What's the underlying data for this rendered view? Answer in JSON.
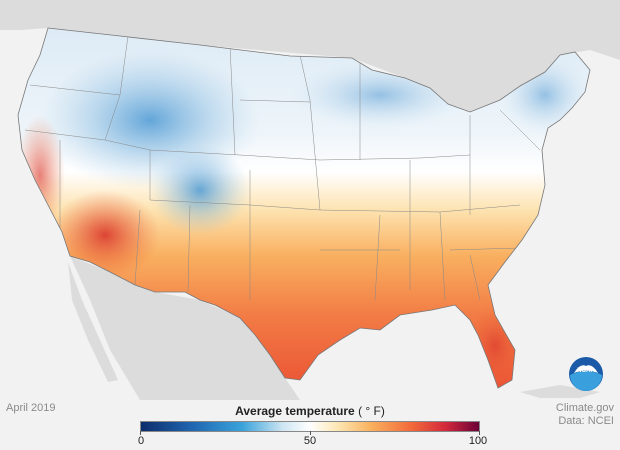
{
  "date_label": "April 2019",
  "credit": {
    "line1": "Climate.gov",
    "line2": "Data: NCEI"
  },
  "legend": {
    "title": "Average temperature",
    "unit": "( ° F)",
    "min_label": "0",
    "mid_label": "50",
    "max_label": "100"
  },
  "logo": {
    "text": "NOAA",
    "icon": "noaa-logo-icon"
  },
  "colors": {
    "cold": "#3a8fd0",
    "neutral": "#ffffff",
    "warm": "#f9b15e",
    "hot": "#e8432e",
    "land_outside": "#dcdcdc",
    "water": "#f2f2f2"
  }
}
